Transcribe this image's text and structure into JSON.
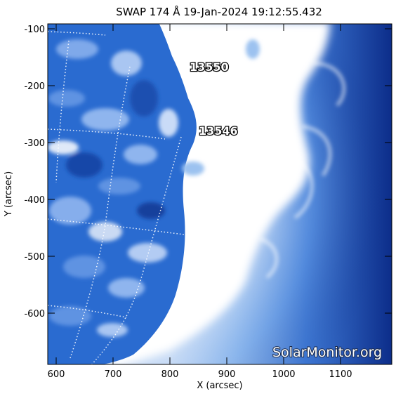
{
  "image": {
    "title": "SWAP 174 Å 19-Jan-2024 19:12:55.432",
    "x_axis_label": "X (arcsec)",
    "y_axis_label": "Y (arcsec)",
    "x_ticks": [
      "600",
      "700",
      "800",
      "900",
      "1000",
      "1100"
    ],
    "y_ticks": [
      "-100",
      "-200",
      "-300",
      "-400",
      "-500",
      "-600"
    ],
    "active_regions": [
      "13550",
      "13546"
    ],
    "watermark": "SolarMonitor.org",
    "colors": {
      "disk_blue": "#1e5fc8",
      "corona_white": "#ffffff",
      "corona_dark": "#0c2d8a",
      "grid_dots": "#ffffff"
    }
  }
}
